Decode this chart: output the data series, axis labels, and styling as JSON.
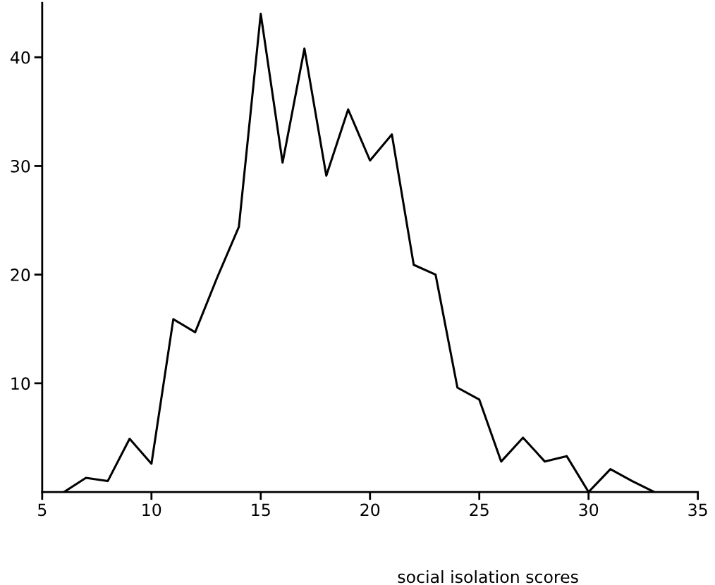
{
  "chart_data": {
    "type": "line",
    "xlabel": "social isolation scores",
    "x": [
      6,
      7,
      8,
      9,
      10,
      11,
      12,
      13,
      14,
      15,
      16,
      17,
      18,
      19,
      20,
      21,
      22,
      23,
      24,
      25,
      26,
      27,
      28,
      29,
      30,
      31,
      32,
      33
    ],
    "series": [
      {
        "color": "#000000",
        "values": [
          0,
          1.3,
          1.0,
          4.9,
          2.6,
          15.9,
          14.7,
          19.7,
          24.4,
          44,
          30.3,
          40.8,
          29.1,
          35.2,
          30.5,
          32.9,
          20.9,
          20,
          9.6,
          8.5,
          2.8,
          5.0,
          2.8,
          3.3,
          0,
          2.1,
          1.0,
          0
        ]
      }
    ],
    "xlim": [
      5,
      35
    ],
    "xticks": [
      5,
      10,
      15,
      20,
      25,
      30,
      35
    ],
    "ylim": [
      0,
      45
    ],
    "yticks": [
      10,
      20,
      30,
      40
    ],
    "grid": false,
    "legend": false,
    "marker": "none",
    "line_style": "solid"
  }
}
